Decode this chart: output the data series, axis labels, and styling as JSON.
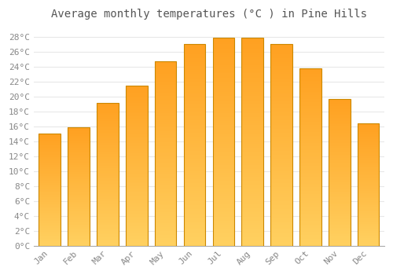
{
  "title": "Average monthly temperatures (°C ) in Pine Hills",
  "months": [
    "Jan",
    "Feb",
    "Mar",
    "Apr",
    "May",
    "Jun",
    "Jul",
    "Aug",
    "Sep",
    "Oct",
    "Nov",
    "Dec"
  ],
  "temperatures": [
    15.1,
    15.9,
    19.2,
    21.5,
    24.8,
    27.1,
    27.9,
    27.9,
    27.1,
    23.8,
    19.7,
    16.4
  ],
  "bar_color_mid": "#FFA500",
  "bar_color_top": "#FFC200",
  "bar_color_bottom": "#FFD700",
  "bar_edge_color": "#CC8800",
  "background_color": "#FFFFFF",
  "grid_color": "#E8E8E8",
  "ytick_min": 0,
  "ytick_max": 28,
  "ytick_step": 2,
  "title_fontsize": 10,
  "tick_fontsize": 8,
  "font_family": "monospace"
}
